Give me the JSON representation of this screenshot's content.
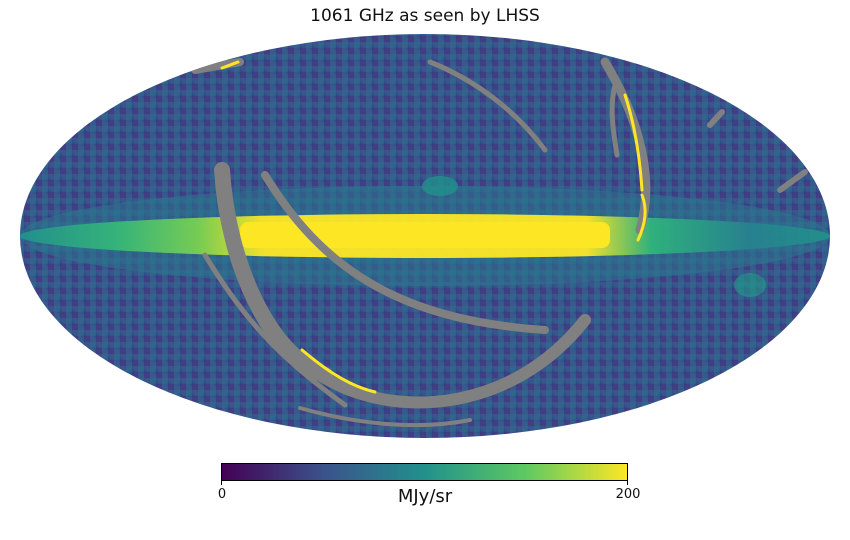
{
  "title": "1061 GHz as seen by LHSS",
  "projection": "mollweide",
  "colormap": "viridis",
  "masked_color": "#808080",
  "colorbar": {
    "min_label": "0",
    "max_label": "200",
    "unit": "MJy/sr",
    "min": 0,
    "max": 200,
    "stops": [
      "#440154",
      "#3b528b",
      "#21918c",
      "#5ec962",
      "#fde725"
    ]
  }
}
